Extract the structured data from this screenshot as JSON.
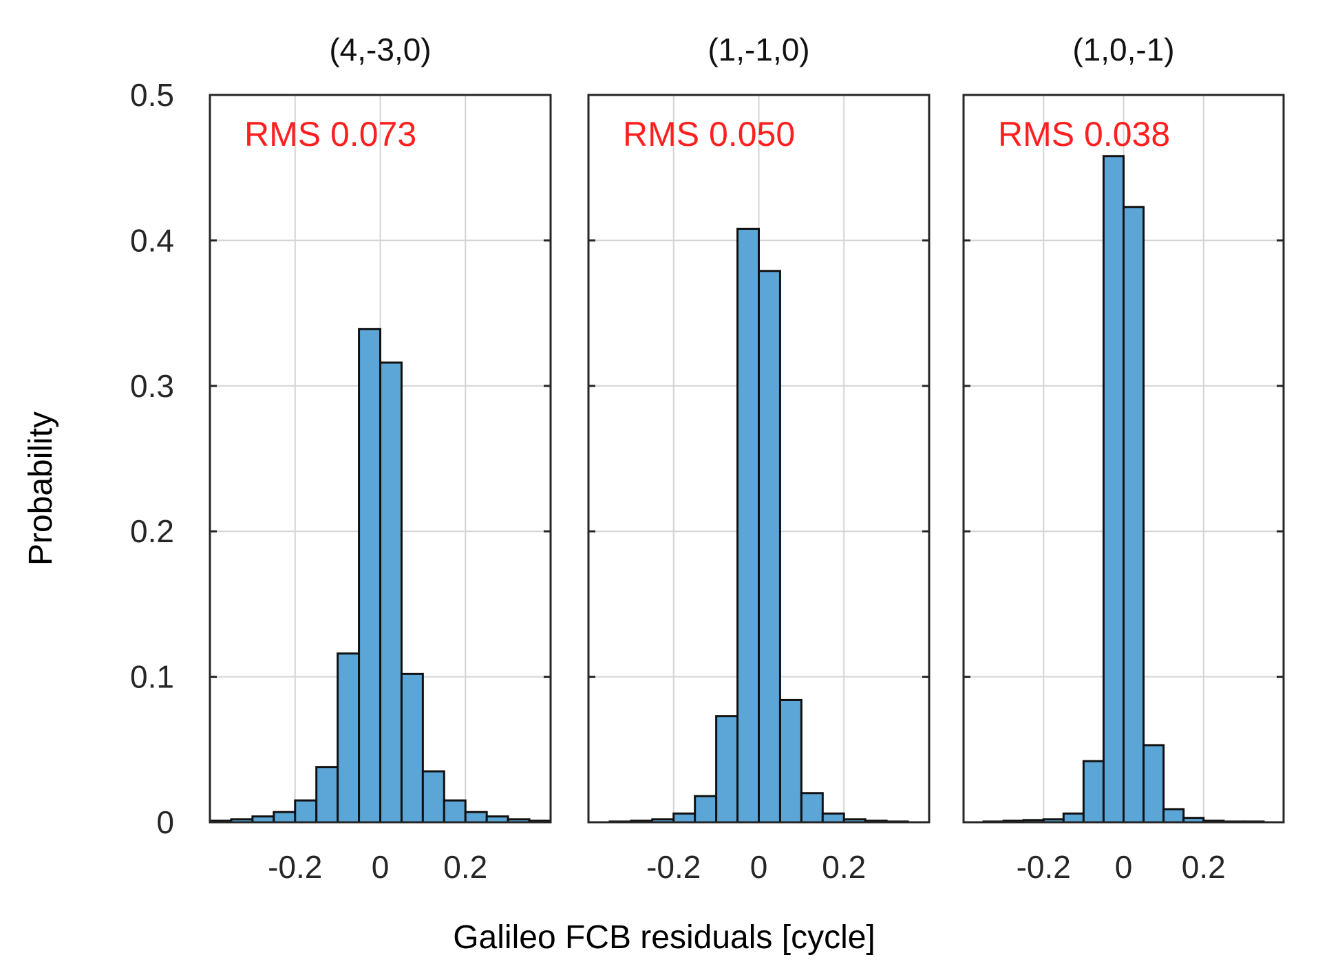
{
  "figure": {
    "ylabel": "Probability",
    "xlabel": "Galileo FCB residuals [cycle]"
  },
  "colors": {
    "bar_fill": "#5ba6d6",
    "bar_edge": "#111111",
    "annotation": "#ff1f1f",
    "grid": "#d4d4d4",
    "axis": "#262626",
    "text": "#262626"
  },
  "chart_data": [
    {
      "type": "bar",
      "title": "(4,-3,0)",
      "annotation": "RMS 0.073",
      "xlim": [
        -0.4,
        0.4
      ],
      "ylim": [
        0,
        0.5
      ],
      "xticks": [
        -0.2,
        0,
        0.2
      ],
      "xtick_labels": [
        "-0.2",
        "0",
        "0.2"
      ],
      "yticks": [
        0,
        0.1,
        0.2,
        0.3,
        0.4,
        0.5
      ],
      "ytick_labels": [
        "0",
        "0.1",
        "0.2",
        "0.3",
        "0.4",
        "0.5"
      ],
      "bin_width": 0.05,
      "bin_starts": [
        -0.4,
        -0.35,
        -0.3,
        -0.25,
        -0.2,
        -0.15,
        -0.1,
        -0.05,
        0.0,
        0.05,
        0.1,
        0.15,
        0.2,
        0.25,
        0.3,
        0.35
      ],
      "values": [
        0.001,
        0.002,
        0.004,
        0.007,
        0.015,
        0.038,
        0.116,
        0.339,
        0.316,
        0.102,
        0.035,
        0.015,
        0.007,
        0.004,
        0.002,
        0.001
      ]
    },
    {
      "type": "bar",
      "title": "(1,-1,0)",
      "annotation": "RMS 0.050",
      "xlim": [
        -0.4,
        0.4
      ],
      "ylim": [
        0,
        0.5
      ],
      "xticks": [
        -0.2,
        0,
        0.2
      ],
      "xtick_labels": [
        "-0.2",
        "0",
        "0.2"
      ],
      "bin_width": 0.05,
      "bin_starts": [
        -0.4,
        -0.35,
        -0.3,
        -0.25,
        -0.2,
        -0.15,
        -0.1,
        -0.05,
        0.0,
        0.05,
        0.1,
        0.15,
        0.2,
        0.25,
        0.3,
        0.35
      ],
      "values": [
        0.0,
        0.0005,
        0.001,
        0.002,
        0.006,
        0.018,
        0.073,
        0.408,
        0.379,
        0.084,
        0.02,
        0.006,
        0.002,
        0.001,
        0.0005,
        0.0
      ]
    },
    {
      "type": "bar",
      "title": "(1,0,-1)",
      "annotation": "RMS 0.038",
      "xlim": [
        -0.4,
        0.4
      ],
      "ylim": [
        0,
        0.5
      ],
      "xticks": [
        -0.2,
        0,
        0.2
      ],
      "xtick_labels": [
        "-0.2",
        "0",
        "0.2"
      ],
      "bin_width": 0.05,
      "bin_starts": [
        -0.4,
        -0.35,
        -0.3,
        -0.25,
        -0.2,
        -0.15,
        -0.1,
        -0.05,
        0.0,
        0.05,
        0.1,
        0.15,
        0.2,
        0.25,
        0.3,
        0.35
      ],
      "values": [
        0.0,
        0.0005,
        0.001,
        0.0015,
        0.002,
        0.006,
        0.042,
        0.458,
        0.423,
        0.053,
        0.009,
        0.003,
        0.001,
        0.0005,
        0.0005,
        0.0
      ]
    }
  ]
}
